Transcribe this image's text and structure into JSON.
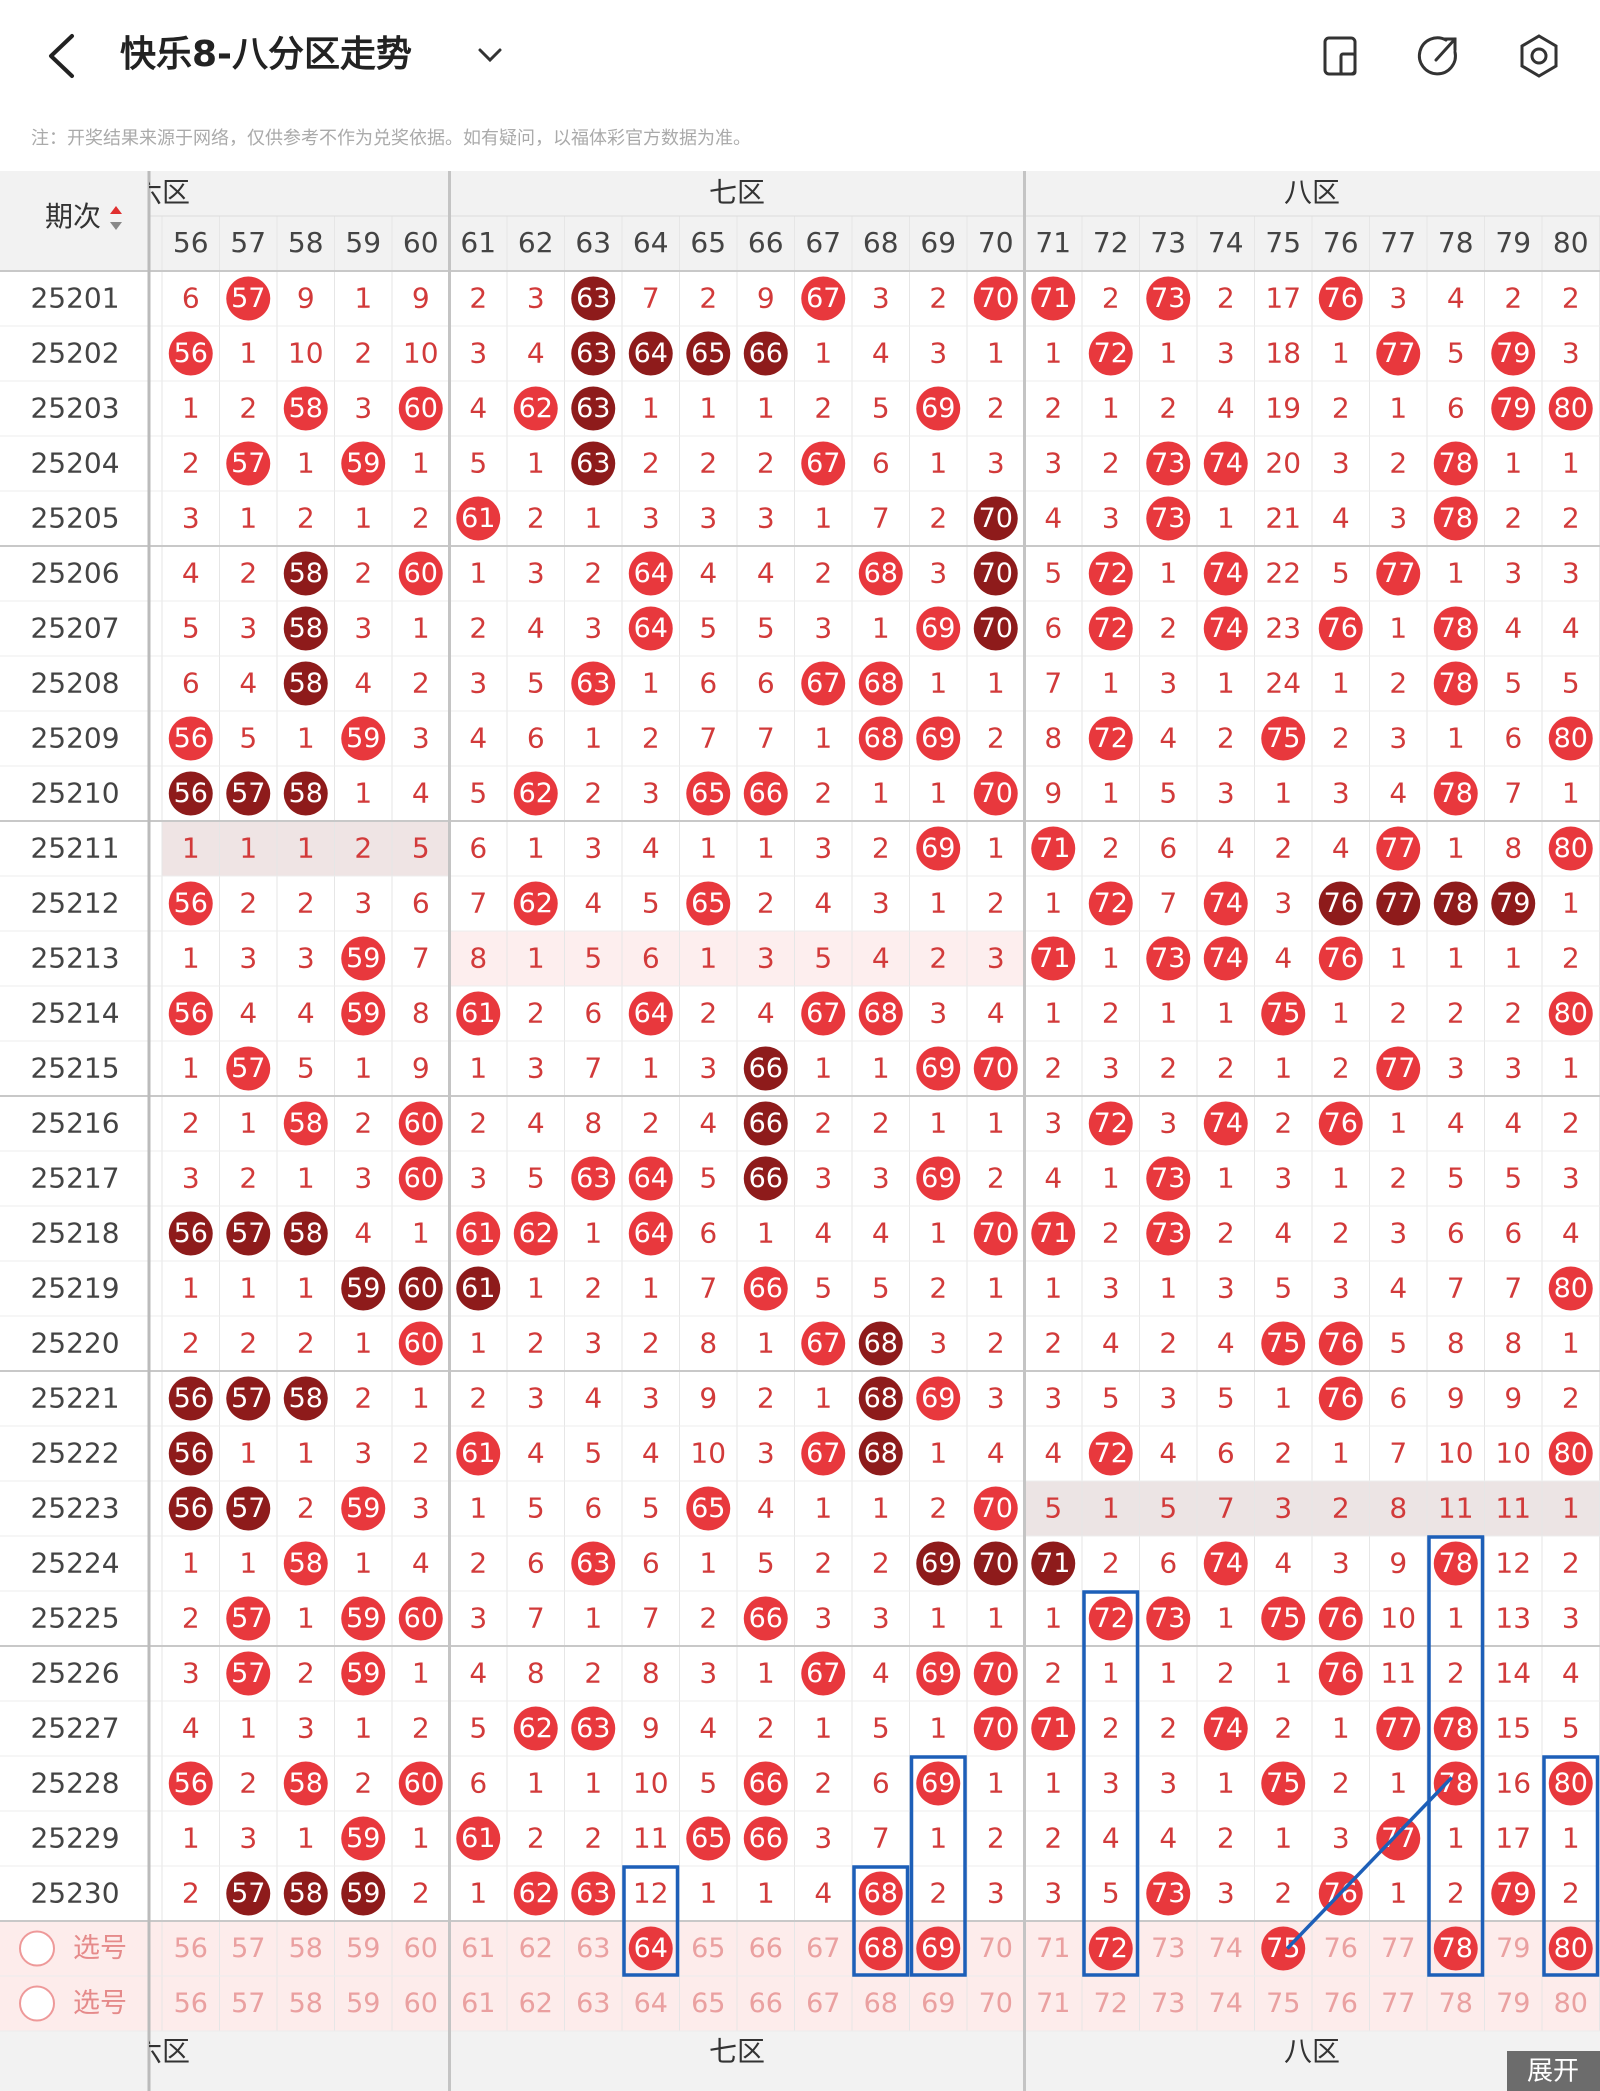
{
  "header": {
    "title": "快乐8-八分区走势"
  },
  "note": "注：开奖结果来源于网络，仅供参考不作为兑奖依据。如有疑问，以福体彩官方数据为准。",
  "table": {
    "issue_header": "期次",
    "zones": [
      "六区",
      "七区",
      "八区"
    ],
    "columns": [
      56,
      57,
      58,
      59,
      60,
      61,
      62,
      63,
      64,
      65,
      66,
      67,
      68,
      69,
      70,
      71,
      72,
      73,
      74,
      75,
      76,
      77,
      78,
      79,
      80
    ],
    "ball_color": "#e8383d",
    "dark_ball_color": "#8e1b1b",
    "rows": [
      {
        "issue": "25201",
        "cells": [
          6,
          57,
          9,
          1,
          9,
          2,
          3,
          63,
          7,
          2,
          9,
          67,
          3,
          2,
          70,
          71,
          2,
          73,
          2,
          17,
          76,
          3,
          4,
          2,
          2
        ],
        "dark": [
          63
        ]
      },
      {
        "issue": "25202",
        "cells": [
          56,
          1,
          10,
          2,
          10,
          3,
          4,
          63,
          64,
          65,
          66,
          1,
          4,
          3,
          1,
          1,
          72,
          1,
          3,
          18,
          1,
          77,
          5,
          79,
          3
        ],
        "dark": [
          63,
          64,
          65,
          66
        ]
      },
      {
        "issue": "25203",
        "cells": [
          1,
          2,
          58,
          3,
          60,
          4,
          62,
          63,
          1,
          1,
          1,
          2,
          5,
          69,
          2,
          2,
          1,
          2,
          4,
          19,
          2,
          1,
          6,
          79,
          80
        ],
        "dark": [
          63
        ]
      },
      {
        "issue": "25204",
        "cells": [
          2,
          57,
          1,
          59,
          1,
          5,
          1,
          63,
          2,
          2,
          2,
          67,
          6,
          1,
          3,
          3,
          2,
          73,
          74,
          20,
          3,
          2,
          78,
          1,
          1
        ],
        "dark": [
          63
        ]
      },
      {
        "issue": "25205",
        "cells": [
          3,
          1,
          2,
          1,
          2,
          61,
          2,
          1,
          3,
          3,
          3,
          1,
          7,
          2,
          70,
          4,
          3,
          73,
          1,
          21,
          4,
          3,
          78,
          2,
          2
        ],
        "dark": [
          70
        ]
      },
      {
        "issue": "25206",
        "cells": [
          4,
          2,
          58,
          2,
          60,
          1,
          3,
          2,
          64,
          4,
          4,
          2,
          68,
          3,
          70,
          5,
          72,
          1,
          74,
          22,
          5,
          77,
          1,
          3,
          3
        ],
        "dark": [
          58,
          70
        ]
      },
      {
        "issue": "25207",
        "cells": [
          5,
          3,
          58,
          3,
          1,
          2,
          4,
          3,
          64,
          5,
          5,
          3,
          1,
          69,
          70,
          6,
          72,
          2,
          74,
          23,
          76,
          1,
          78,
          4,
          4
        ],
        "dark": [
          58,
          70
        ]
      },
      {
        "issue": "25208",
        "cells": [
          6,
          4,
          58,
          4,
          2,
          3,
          5,
          63,
          1,
          6,
          6,
          67,
          68,
          1,
          1,
          7,
          1,
          3,
          1,
          24,
          1,
          2,
          78,
          5,
          5
        ],
        "dark": [
          58
        ]
      },
      {
        "issue": "25209",
        "cells": [
          56,
          5,
          1,
          59,
          3,
          4,
          6,
          1,
          2,
          7,
          7,
          1,
          68,
          69,
          2,
          8,
          72,
          4,
          2,
          75,
          2,
          3,
          1,
          6,
          80
        ],
        "dark": []
      },
      {
        "issue": "25210",
        "cells": [
          56,
          57,
          58,
          1,
          4,
          5,
          62,
          2,
          3,
          65,
          66,
          2,
          1,
          1,
          70,
          9,
          1,
          5,
          3,
          1,
          3,
          4,
          78,
          7,
          1
        ],
        "dark": [
          56,
          57,
          58
        ]
      },
      {
        "issue": "25211",
        "cells": [
          1,
          1,
          1,
          2,
          5,
          6,
          1,
          3,
          4,
          1,
          1,
          3,
          2,
          69,
          1,
          71,
          2,
          6,
          4,
          2,
          4,
          77,
          1,
          8,
          80
        ],
        "dark": []
      },
      {
        "issue": "25212",
        "cells": [
          56,
          2,
          2,
          3,
          6,
          7,
          62,
          4,
          5,
          65,
          2,
          4,
          3,
          1,
          2,
          1,
          72,
          7,
          74,
          3,
          76,
          77,
          78,
          79,
          1
        ],
        "dark": [
          76,
          77,
          78,
          79
        ]
      },
      {
        "issue": "25213",
        "cells": [
          1,
          3,
          3,
          59,
          7,
          8,
          1,
          5,
          6,
          1,
          3,
          5,
          4,
          2,
          3,
          71,
          1,
          73,
          74,
          4,
          76,
          1,
          1,
          1,
          2
        ],
        "dark": []
      },
      {
        "issue": "25214",
        "cells": [
          56,
          4,
          4,
          59,
          8,
          61,
          2,
          6,
          64,
          2,
          4,
          67,
          68,
          3,
          4,
          1,
          2,
          1,
          1,
          75,
          1,
          2,
          2,
          2,
          80
        ],
        "dark": []
      },
      {
        "issue": "25215",
        "cells": [
          1,
          57,
          5,
          1,
          9,
          1,
          3,
          7,
          1,
          3,
          66,
          1,
          1,
          69,
          70,
          2,
          3,
          2,
          2,
          1,
          2,
          77,
          3,
          3,
          1
        ],
        "dark": [
          66
        ]
      },
      {
        "issue": "25216",
        "cells": [
          2,
          1,
          58,
          2,
          60,
          2,
          4,
          8,
          2,
          4,
          66,
          2,
          2,
          1,
          1,
          3,
          72,
          3,
          74,
          2,
          76,
          1,
          4,
          4,
          2
        ],
        "dark": [
          66
        ]
      },
      {
        "issue": "25217",
        "cells": [
          3,
          2,
          1,
          3,
          60,
          3,
          5,
          63,
          64,
          5,
          66,
          3,
          3,
          69,
          2,
          4,
          1,
          73,
          1,
          3,
          1,
          2,
          5,
          5,
          3
        ],
        "dark": [
          66
        ]
      },
      {
        "issue": "25218",
        "cells": [
          56,
          57,
          58,
          4,
          1,
          61,
          62,
          1,
          64,
          6,
          1,
          4,
          4,
          1,
          70,
          71,
          2,
          73,
          2,
          4,
          2,
          3,
          6,
          6,
          4
        ],
        "dark": [
          56,
          57,
          58
        ]
      },
      {
        "issue": "25219",
        "cells": [
          1,
          1,
          1,
          59,
          60,
          61,
          1,
          2,
          1,
          7,
          66,
          5,
          5,
          2,
          1,
          1,
          3,
          1,
          3,
          5,
          3,
          4,
          7,
          7,
          80
        ],
        "dark": [
          59,
          60,
          61
        ]
      },
      {
        "issue": "25220",
        "cells": [
          2,
          2,
          2,
          1,
          60,
          1,
          2,
          3,
          2,
          8,
          1,
          67,
          68,
          3,
          2,
          2,
          4,
          2,
          4,
          75,
          76,
          5,
          8,
          8,
          1
        ],
        "dark": [
          68
        ]
      },
      {
        "issue": "25221",
        "cells": [
          56,
          57,
          58,
          2,
          1,
          2,
          3,
          4,
          3,
          9,
          2,
          1,
          68,
          69,
          3,
          3,
          5,
          3,
          5,
          1,
          76,
          6,
          9,
          9,
          2
        ],
        "dark": [
          56,
          57,
          58,
          68
        ]
      },
      {
        "issue": "25222",
        "cells": [
          56,
          1,
          1,
          3,
          2,
          61,
          4,
          5,
          4,
          10,
          3,
          67,
          68,
          1,
          4,
          4,
          72,
          4,
          6,
          2,
          1,
          7,
          10,
          10,
          80
        ],
        "dark": [
          56,
          68
        ]
      },
      {
        "issue": "25223",
        "cells": [
          56,
          57,
          2,
          59,
          3,
          1,
          5,
          6,
          5,
          65,
          4,
          1,
          1,
          2,
          70,
          5,
          1,
          5,
          7,
          3,
          2,
          8,
          11,
          11,
          1
        ],
        "dark": [
          56,
          57
        ]
      },
      {
        "issue": "25224",
        "cells": [
          1,
          1,
          58,
          1,
          4,
          2,
          6,
          63,
          6,
          1,
          5,
          2,
          2,
          69,
          70,
          71,
          2,
          6,
          74,
          4,
          3,
          9,
          78,
          12,
          2
        ],
        "dark": [
          69,
          70,
          71
        ]
      },
      {
        "issue": "25225",
        "cells": [
          2,
          57,
          1,
          59,
          60,
          3,
          7,
          1,
          7,
          2,
          66,
          3,
          3,
          1,
          1,
          1,
          72,
          73,
          1,
          75,
          76,
          10,
          1,
          13,
          3
        ],
        "dark": []
      },
      {
        "issue": "25226",
        "cells": [
          3,
          57,
          2,
          59,
          1,
          4,
          8,
          2,
          8,
          3,
          1,
          67,
          4,
          69,
          70,
          2,
          1,
          1,
          2,
          1,
          76,
          11,
          2,
          14,
          4
        ],
        "dark": []
      },
      {
        "issue": "25227",
        "cells": [
          4,
          1,
          3,
          1,
          2,
          5,
          62,
          63,
          9,
          4,
          2,
          1,
          5,
          1,
          70,
          71,
          2,
          2,
          74,
          2,
          1,
          77,
          78,
          15,
          5
        ],
        "dark": []
      },
      {
        "issue": "25228",
        "cells": [
          56,
          2,
          58,
          2,
          60,
          6,
          1,
          1,
          10,
          5,
          66,
          2,
          6,
          69,
          1,
          1,
          3,
          3,
          1,
          75,
          2,
          1,
          78,
          16,
          80
        ],
        "dark": []
      },
      {
        "issue": "25229",
        "cells": [
          1,
          3,
          1,
          59,
          1,
          61,
          2,
          2,
          11,
          65,
          66,
          3,
          7,
          1,
          2,
          2,
          4,
          4,
          2,
          1,
          3,
          77,
          1,
          17,
          1
        ],
        "dark": []
      },
      {
        "issue": "25230",
        "cells": [
          2,
          57,
          58,
          59,
          2,
          1,
          62,
          63,
          12,
          1,
          1,
          4,
          68,
          2,
          3,
          3,
          5,
          73,
          3,
          2,
          76,
          1,
          2,
          79,
          2
        ],
        "dark": [
          57,
          58,
          59
        ]
      }
    ],
    "pick_label": "选号",
    "picks": [
      64,
      68,
      69,
      72,
      75,
      78,
      80
    ]
  },
  "expand_button": "展开"
}
